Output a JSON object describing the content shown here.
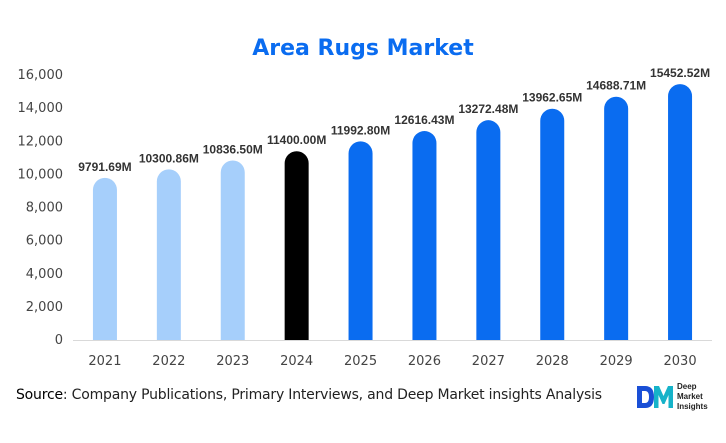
{
  "chart_data": {
    "type": "bar",
    "title": "Area Rugs Market",
    "categories": [
      "2021",
      "2022",
      "2023",
      "2024",
      "2025",
      "2026",
      "2027",
      "2028",
      "2029",
      "2030"
    ],
    "values": [
      9791.69,
      10300.86,
      10836.5,
      11400.0,
      11992.8,
      12616.43,
      13272.48,
      13962.65,
      14688.71,
      15452.52
    ],
    "data_labels": [
      "9791.69M",
      "10300.86M",
      "10836.50M",
      "11400.00M",
      "11992.80M",
      "12616.43M",
      "13272.48M",
      "13962.65M",
      "14688.71M",
      "15452.52M"
    ],
    "y_ticks": [
      "0",
      "2,000",
      "4,000",
      "6,000",
      "8,000",
      "10,000",
      "12,000",
      "14,000",
      "16,000"
    ],
    "ylim": [
      0,
      16000
    ],
    "xlabel": "",
    "ylabel": "",
    "grid": false,
    "bar_colors": [
      "#a6cffb",
      "#a6cffb",
      "#a6cffb",
      "#000000",
      "#0a6cf0",
      "#0a6cf0",
      "#0a6cf0",
      "#0a6cf0",
      "#0a6cf0",
      "#0a6cf0"
    ],
    "title_color": "#0a6cf0"
  },
  "footer": {
    "source_label": "Source",
    "source_text": ": Company Publications, Primary Interviews, and Deep Market insights Analysis"
  },
  "logo": {
    "mark": "DM",
    "text": "Deep\nMarket\nInsights",
    "colors": [
      "#1a4fd6",
      "#16b3c9"
    ]
  }
}
